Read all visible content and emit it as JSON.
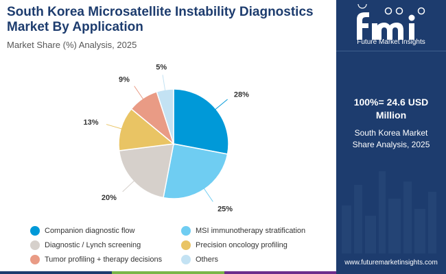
{
  "header": {
    "title": "South Korea Microsatellite Instability Diagnostics Market By Application",
    "subtitle": "Market Share (%) Analysis, 2025"
  },
  "chart_data": {
    "type": "pie",
    "title": "South Korea Microsatellite Instability Diagnostics Market By Application",
    "subtitle": "Market Share (%) Analysis, 2025",
    "categories": [
      "Companion diagnostic flow",
      "MSI immunotherapy stratification",
      "Diagnostic / Lynch screening",
      "Precision oncology profiling",
      "Tumor profiling + therapy decisions",
      "Others"
    ],
    "values": [
      28,
      25,
      20,
      13,
      9,
      5
    ],
    "labels": [
      "28%",
      "25%",
      "20%",
      "13%",
      "9%",
      "5%"
    ],
    "colors": [
      "#0099d8",
      "#6fcdf2",
      "#d6d0cb",
      "#e9c464",
      "#e99b85",
      "#c3e2f3"
    ],
    "legend_position": "bottom"
  },
  "side_panel": {
    "logo_text": "Future Market Insights",
    "total": "100%= 24.6 USD Million",
    "subtitle": "South Korea Market Share Analysis, 2025",
    "url": "www.futuremarketinsights.com"
  },
  "colors": {
    "panel": "#1d3c6e",
    "title": "#1d3c6e",
    "bar": [
      "#1d3c6e",
      "#7ab648",
      "#6b2d8c"
    ]
  }
}
